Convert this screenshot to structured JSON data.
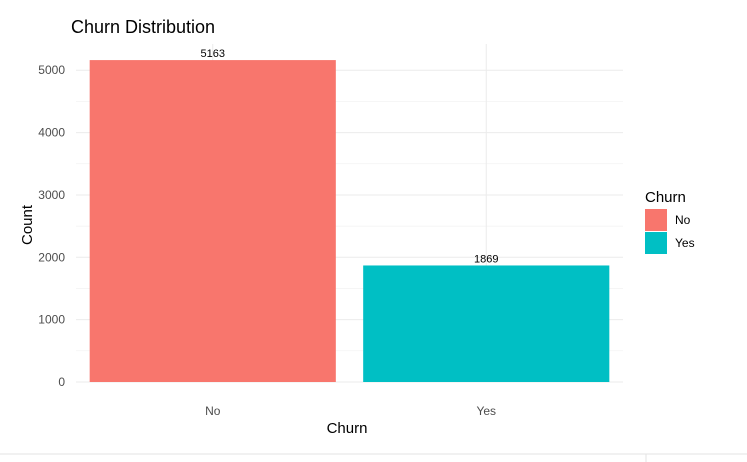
{
  "chart_data": {
    "type": "bar",
    "title": "Churn Distribution",
    "xlabel": "Churn",
    "ylabel": "Count",
    "categories": [
      "No",
      "Yes"
    ],
    "values": [
      5163,
      1869
    ],
    "data_labels": [
      "5163",
      "1869"
    ],
    "colors": [
      "#F8766D",
      "#00BFC4"
    ],
    "ylim": [
      0,
      5421
    ],
    "yticks": [
      0,
      1000,
      2000,
      3000,
      4000,
      5000
    ],
    "ytick_labels": [
      "0",
      "1000",
      "2000",
      "3000",
      "4000",
      "5000"
    ],
    "grid": true,
    "legend": {
      "title": "Churn",
      "placement": "right",
      "entries": [
        {
          "label": "No",
          "color": "#F8766D"
        },
        {
          "label": "Yes",
          "color": "#00BFC4"
        }
      ]
    }
  }
}
